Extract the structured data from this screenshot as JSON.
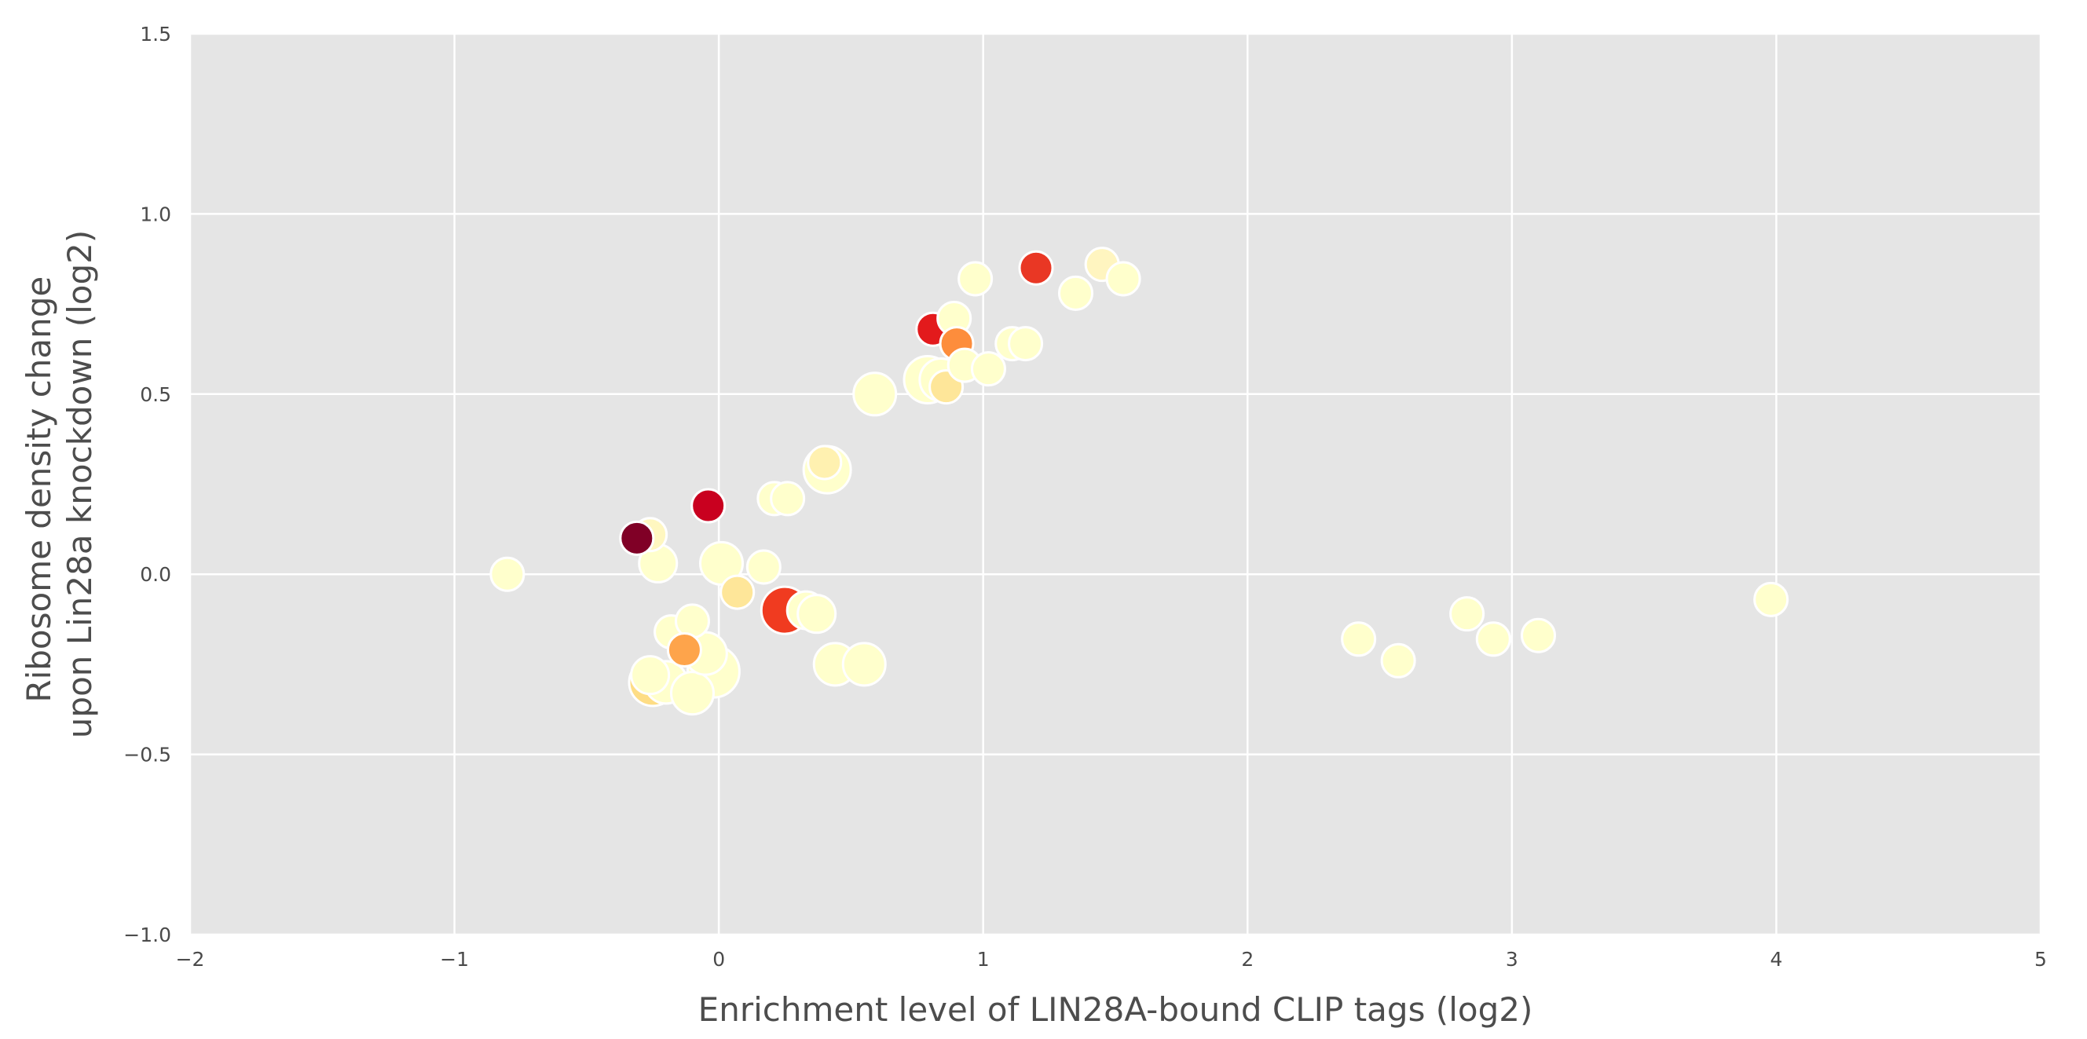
{
  "chart_data": {
    "type": "scatter",
    "title": "",
    "xlabel": "Enrichment level of LIN28A-bound CLIP tags (log2)",
    "ylabel_lines": [
      "Ribosome density change",
      "upon Lin28a knockdown (log2)"
    ],
    "xlim": [
      -2,
      5
    ],
    "ylim": [
      -1.0,
      1.5
    ],
    "x_ticks": [
      -2,
      -1,
      0,
      1,
      2,
      3,
      4,
      5
    ],
    "x_tick_labels": [
      "−2",
      "−1",
      "0",
      "1",
      "2",
      "3",
      "4",
      "5"
    ],
    "y_ticks": [
      -1.0,
      -0.5,
      0.0,
      0.5,
      1.0,
      1.5
    ],
    "y_tick_labels": [
      "−1.0",
      "−0.5",
      "0.0",
      "0.5",
      "1.0",
      "1.5"
    ],
    "grid": true,
    "background": "#e5e5e5",
    "grid_color": "#ffffff",
    "marker_edge_color": "#ffffff",
    "colormap": "YlOrRd",
    "legend": "none",
    "points": [
      {
        "x": -0.8,
        "y": 0.0,
        "size": 14,
        "color": "#ffffcc"
      },
      {
        "x": -0.26,
        "y": 0.11,
        "size": 14,
        "color": "#fff7c0"
      },
      {
        "x": -0.23,
        "y": 0.03,
        "size": 16,
        "color": "#ffffcc"
      },
      {
        "x": -0.31,
        "y": 0.1,
        "size": 14,
        "color": "#800026"
      },
      {
        "x": -0.04,
        "y": 0.19,
        "size": 14,
        "color": "#c9001f"
      },
      {
        "x": -0.18,
        "y": -0.16,
        "size": 14,
        "color": "#ffffcc"
      },
      {
        "x": -0.1,
        "y": -0.13,
        "size": 14,
        "color": "#ffffcc"
      },
      {
        "x": -0.13,
        "y": -0.21,
        "size": 14,
        "color": "#fea44b"
      },
      {
        "x": -0.26,
        "y": -0.28,
        "size": 16,
        "color": "#ffffcc"
      },
      {
        "x": -0.2,
        "y": -0.3,
        "size": 18,
        "color": "#ffffcc"
      },
      {
        "x": -0.25,
        "y": -0.3,
        "size": 20,
        "color": "#fedd85"
      },
      {
        "x": -0.1,
        "y": -0.33,
        "size": 18,
        "color": "#ffffcc"
      },
      {
        "x": -0.05,
        "y": -0.22,
        "size": 18,
        "color": "#ffffcc"
      },
      {
        "x": -0.02,
        "y": -0.27,
        "size": 22,
        "color": "#ffffcc"
      },
      {
        "x": 0.01,
        "y": 0.03,
        "size": 18,
        "color": "#ffffcc"
      },
      {
        "x": 0.07,
        "y": -0.05,
        "size": 14,
        "color": "#fee699"
      },
      {
        "x": 0.17,
        "y": 0.02,
        "size": 14,
        "color": "#ffffcc"
      },
      {
        "x": 0.21,
        "y": 0.21,
        "size": 14,
        "color": "#ffffcc"
      },
      {
        "x": 0.26,
        "y": 0.21,
        "size": 14,
        "color": "#ffffcc"
      },
      {
        "x": 0.33,
        "y": -0.1,
        "size": 16,
        "color": "#ffffcc"
      },
      {
        "x": 0.37,
        "y": -0.11,
        "size": 16,
        "color": "#ffffcc"
      },
      {
        "x": 0.25,
        "y": -0.1,
        "size": 20,
        "color": "#f03b20"
      },
      {
        "x": 0.41,
        "y": 0.29,
        "size": 20,
        "color": "#ffffcc"
      },
      {
        "x": 0.4,
        "y": 0.31,
        "size": 14,
        "color": "#fff1b0"
      },
      {
        "x": 0.44,
        "y": -0.25,
        "size": 18,
        "color": "#ffffcc"
      },
      {
        "x": 0.55,
        "y": -0.25,
        "size": 18,
        "color": "#ffffcc"
      },
      {
        "x": 0.59,
        "y": 0.5,
        "size": 18,
        "color": "#ffffcc"
      },
      {
        "x": 0.79,
        "y": 0.54,
        "size": 20,
        "color": "#ffffcc"
      },
      {
        "x": 0.84,
        "y": 0.54,
        "size": 18,
        "color": "#ffffcc"
      },
      {
        "x": 0.86,
        "y": 0.52,
        "size": 14,
        "color": "#fee699"
      },
      {
        "x": 0.81,
        "y": 0.68,
        "size": 14,
        "color": "#e31a1c"
      },
      {
        "x": 0.89,
        "y": 0.71,
        "size": 14,
        "color": "#ffffcc"
      },
      {
        "x": 0.9,
        "y": 0.64,
        "size": 14,
        "color": "#fd8d3c"
      },
      {
        "x": 0.93,
        "y": 0.58,
        "size": 14,
        "color": "#ffffcc"
      },
      {
        "x": 0.97,
        "y": 0.82,
        "size": 14,
        "color": "#ffffcc"
      },
      {
        "x": 1.02,
        "y": 0.57,
        "size": 14,
        "color": "#ffffcc"
      },
      {
        "x": 1.11,
        "y": 0.64,
        "size": 14,
        "color": "#ffffcc"
      },
      {
        "x": 1.16,
        "y": 0.64,
        "size": 14,
        "color": "#ffffcc"
      },
      {
        "x": 1.2,
        "y": 0.85,
        "size": 14,
        "color": "#e93724"
      },
      {
        "x": 1.35,
        "y": 0.78,
        "size": 14,
        "color": "#ffffcc"
      },
      {
        "x": 1.45,
        "y": 0.86,
        "size": 14,
        "color": "#fff5c0"
      },
      {
        "x": 1.53,
        "y": 0.82,
        "size": 14,
        "color": "#ffffcc"
      },
      {
        "x": 2.42,
        "y": -0.18,
        "size": 14,
        "color": "#ffffcc"
      },
      {
        "x": 2.57,
        "y": -0.24,
        "size": 14,
        "color": "#ffffcc"
      },
      {
        "x": 2.83,
        "y": -0.11,
        "size": 14,
        "color": "#ffffcc"
      },
      {
        "x": 2.93,
        "y": -0.18,
        "size": 14,
        "color": "#ffffcc"
      },
      {
        "x": 3.1,
        "y": -0.17,
        "size": 14,
        "color": "#ffffcc"
      },
      {
        "x": 3.98,
        "y": -0.07,
        "size": 14,
        "color": "#ffffcc"
      }
    ]
  }
}
